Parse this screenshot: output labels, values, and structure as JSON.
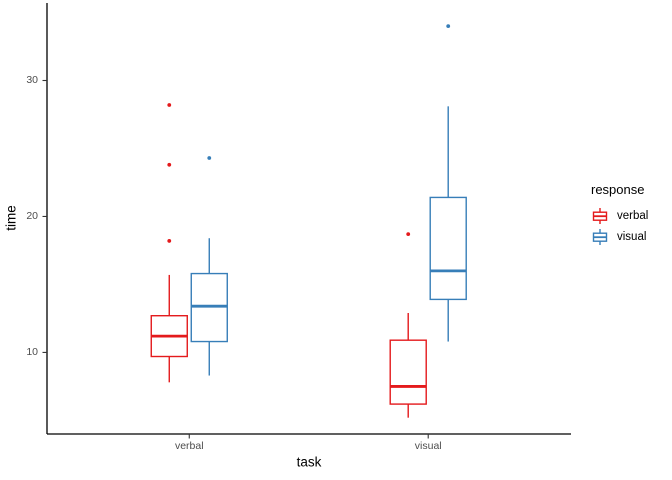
{
  "chart_data": {
    "type": "boxplot",
    "title": "",
    "xlabel": "task",
    "ylabel": "time",
    "x_categories": [
      "verbal",
      "visual"
    ],
    "y_ticks": [
      10,
      20,
      30
    ],
    "ylim": [
      4.0,
      35.7
    ],
    "grid": false,
    "legend": {
      "title": "response",
      "position": "right",
      "entries": [
        {
          "label": "verbal",
          "color": "#E41A1C"
        },
        {
          "label": "visual",
          "color": "#377EB8"
        }
      ]
    },
    "series": [
      {
        "name": "verbal",
        "color": "#E41A1C",
        "boxes": [
          {
            "category": "verbal",
            "whisker_low": 7.8,
            "q1": 9.7,
            "median": 11.2,
            "q3": 12.7,
            "whisker_high": 15.7,
            "outliers": [
              18.2,
              23.8,
              28.2
            ]
          },
          {
            "category": "visual",
            "whisker_low": 5.2,
            "q1": 6.2,
            "median": 7.5,
            "q3": 10.9,
            "whisker_high": 12.9,
            "outliers": [
              18.7
            ]
          }
        ]
      },
      {
        "name": "visual",
        "color": "#377EB8",
        "boxes": [
          {
            "category": "verbal",
            "whisker_low": 8.3,
            "q1": 10.8,
            "median": 13.4,
            "q3": 15.8,
            "whisker_high": 18.4,
            "outliers": [
              24.3
            ]
          },
          {
            "category": "visual",
            "whisker_low": 10.8,
            "q1": 13.9,
            "median": 16.0,
            "q3": 21.4,
            "whisker_high": 28.1,
            "outliers": [
              34.0
            ]
          }
        ]
      }
    ],
    "style": {
      "axis_line_color": "#000000",
      "tick_color": "#333333",
      "tick_label_color": "#4D4D4D",
      "box_fill": "#FFFFFF",
      "background": "#FFFFFF"
    }
  }
}
